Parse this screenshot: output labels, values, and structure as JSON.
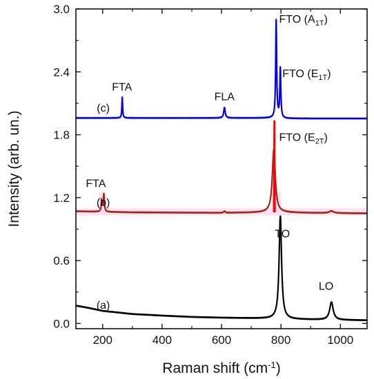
{
  "chart_data": {
    "type": "line",
    "xlabel": "Raman shift (cm",
    "xlabel_sup": "-1",
    "xlabel_end": ")",
    "ylabel": "Intensity (arb. un.)",
    "xlim": [
      110,
      1090
    ],
    "ylim": [
      -0.05,
      3.0
    ],
    "x_ticks": [
      200,
      400,
      600,
      800,
      1000
    ],
    "x_tick_labels": [
      "200",
      "400",
      "600",
      "800",
      "1000"
    ],
    "y_ticks": [
      0.0,
      0.6,
      1.2,
      1.8,
      2.4,
      3.0
    ],
    "y_tick_labels": [
      "0.0",
      "0.6",
      "1.2",
      "1.8",
      "2.4",
      "3.0"
    ],
    "grid": false,
    "series": [
      {
        "name": "(a)",
        "color": "#000000",
        "baseline": [
          [
            110,
            0.17
          ],
          [
            150,
            0.15
          ],
          [
            200,
            0.12
          ],
          [
            300,
            0.09
          ],
          [
            400,
            0.075
          ],
          [
            500,
            0.062
          ],
          [
            600,
            0.055
          ],
          [
            700,
            0.05
          ],
          [
            780,
            0.046
          ],
          [
            850,
            0.04
          ],
          [
            950,
            0.035
          ],
          [
            1090,
            0.03
          ]
        ],
        "peaks": [
          {
            "center": 798,
            "height": 0.98,
            "width": 5
          },
          {
            "center": 970,
            "height": 0.17,
            "width": 7
          }
        ]
      },
      {
        "name": "(b)",
        "color": "#9b2a14",
        "baseline": [
          [
            110,
            1.07
          ],
          [
            300,
            1.06
          ],
          [
            600,
            1.055
          ],
          [
            770,
            1.06
          ],
          [
            790,
            1.06
          ],
          [
            900,
            1.055
          ],
          [
            1090,
            1.05
          ]
        ],
        "peaks": [
          {
            "center": 197,
            "height": 0.1,
            "width": 2
          },
          {
            "center": 204,
            "height": 0.17,
            "width": 2
          },
          {
            "center": 610,
            "height": 0.015,
            "width": 3
          },
          {
            "center": 776,
            "height": 0.6,
            "width": 6
          },
          {
            "center": 970,
            "height": 0.02,
            "width": 8
          }
        ],
        "highlight": {
          "center": 778,
          "height": 0.87,
          "color": "#ff0000"
        }
      },
      {
        "name": "(c)",
        "color": "#0000dd",
        "baseline": [
          [
            110,
            1.96
          ],
          [
            500,
            1.96
          ],
          [
            770,
            1.96
          ],
          [
            820,
            1.955
          ],
          [
            1090,
            1.955
          ]
        ],
        "peaks": [
          {
            "center": 266,
            "height": 0.2,
            "width": 1.5
          },
          {
            "center": 610,
            "height": 0.1,
            "width": 3
          },
          {
            "center": 784,
            "height": 0.93,
            "width": 2
          },
          {
            "center": 798,
            "height": 0.47,
            "width": 2
          }
        ]
      }
    ],
    "annotations": [
      {
        "id": "fta-c",
        "text": "FTA",
        "x": 265,
        "y": 2.22
      },
      {
        "id": "label-c",
        "text": "(c)",
        "x": 202,
        "y": 2.02
      },
      {
        "id": "fla-c",
        "text": "FLA",
        "x": 610,
        "y": 2.13
      },
      {
        "id": "fto-a1t",
        "text": "FTO (A",
        "sub": "1T",
        "end": ")",
        "x": 794,
        "y": 2.87
      },
      {
        "id": "fto-e1t",
        "text": "FTO (E",
        "sub": "1T",
        "end": ")",
        "x": 805,
        "y": 2.35
      },
      {
        "id": "fto-e2t",
        "text": "FTO (E",
        "sub": "2T",
        "end": ")",
        "x": 794,
        "y": 1.74
      },
      {
        "id": "fta-b",
        "text": "FTA",
        "x": 177,
        "y": 1.3
      },
      {
        "id": "label-b",
        "text": "(b)",
        "x": 202,
        "y": 1.12
      },
      {
        "id": "to-a",
        "text": "TO",
        "x": 805,
        "y": 0.82
      },
      {
        "id": "lo-a",
        "text": "LO",
        "x": 952,
        "y": 0.32
      },
      {
        "id": "label-a",
        "text": "(a)",
        "x": 202,
        "y": 0.14
      }
    ]
  }
}
